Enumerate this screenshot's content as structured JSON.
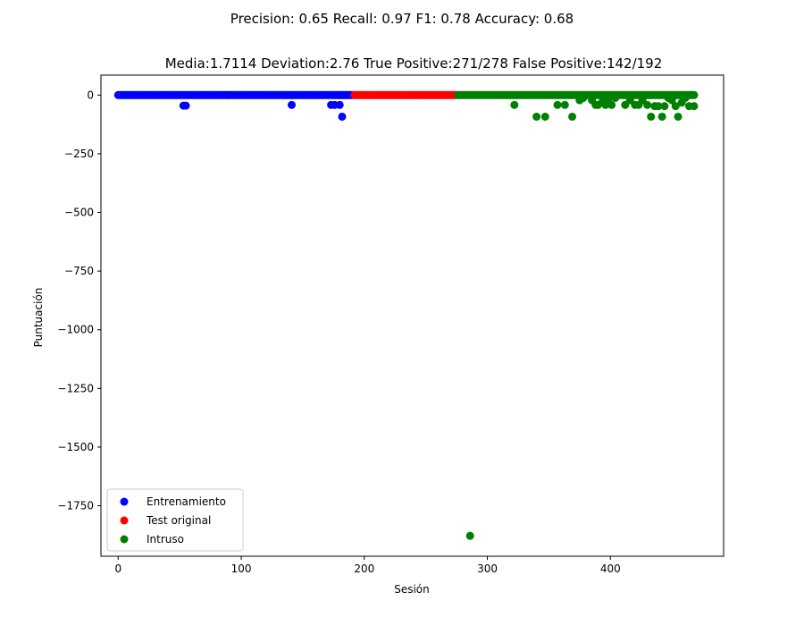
{
  "chart_data": {
    "type": "scatter",
    "suptitle": "Precision: 0.65 Recall: 0.97 F1: 0.78 Accuracy: 0.68",
    "title": "Media:1.7114 Deviation:2.76 True Positive:271/278 False Positive:142/192",
    "xlabel": "Sesión",
    "ylabel": "Puntuación",
    "xlim": [
      -14,
      492
    ],
    "ylim": [
      -1965,
      85
    ],
    "xticks": [
      0,
      100,
      200,
      300,
      400
    ],
    "yticks": [
      0,
      -250,
      -500,
      -750,
      -1000,
      -1250,
      -1500,
      -1750
    ],
    "ytick_labels": [
      "0",
      "−250",
      "−500",
      "−750",
      "−1000",
      "−1250",
      "−1500",
      "−1750"
    ],
    "legend_position": "lower-left",
    "series": [
      {
        "name": "Entrenamiento",
        "color": "#0000ff",
        "range": [
          0,
          192
        ],
        "outliers": [
          [
            53,
            -45
          ],
          [
            55,
            -45
          ],
          [
            141,
            -42
          ],
          [
            173,
            -42
          ],
          [
            176,
            -42
          ],
          [
            180,
            -42
          ],
          [
            182,
            -92
          ]
        ]
      },
      {
        "name": "Test original",
        "color": "#ff0000",
        "range": [
          192,
          276
        ],
        "outliers": []
      },
      {
        "name": "Intruso",
        "color": "#008000",
        "range": [
          276,
          469
        ],
        "outliers": [
          [
            286,
            -1878
          ],
          [
            322,
            -42
          ],
          [
            340,
            -92
          ],
          [
            347,
            -92
          ],
          [
            357,
            -42
          ],
          [
            363,
            -42
          ],
          [
            369,
            -92
          ],
          [
            375,
            -22
          ],
          [
            378,
            -12
          ],
          [
            385,
            -22
          ],
          [
            388,
            -42
          ],
          [
            390,
            -42
          ],
          [
            393,
            -32
          ],
          [
            396,
            -42
          ],
          [
            398,
            -22
          ],
          [
            401,
            -42
          ],
          [
            404,
            -12
          ],
          [
            412,
            -42
          ],
          [
            416,
            -22
          ],
          [
            420,
            -42
          ],
          [
            423,
            -42
          ],
          [
            426,
            -22
          ],
          [
            430,
            -42
          ],
          [
            433,
            -92
          ],
          [
            436,
            -47
          ],
          [
            439,
            -47
          ],
          [
            442,
            -92
          ],
          [
            444,
            -47
          ],
          [
            447,
            -12
          ],
          [
            450,
            -22
          ],
          [
            453,
            -47
          ],
          [
            455,
            -92
          ],
          [
            458,
            -32
          ],
          [
            461,
            -12
          ],
          [
            464,
            -47
          ],
          [
            468,
            -47
          ]
        ]
      }
    ]
  }
}
